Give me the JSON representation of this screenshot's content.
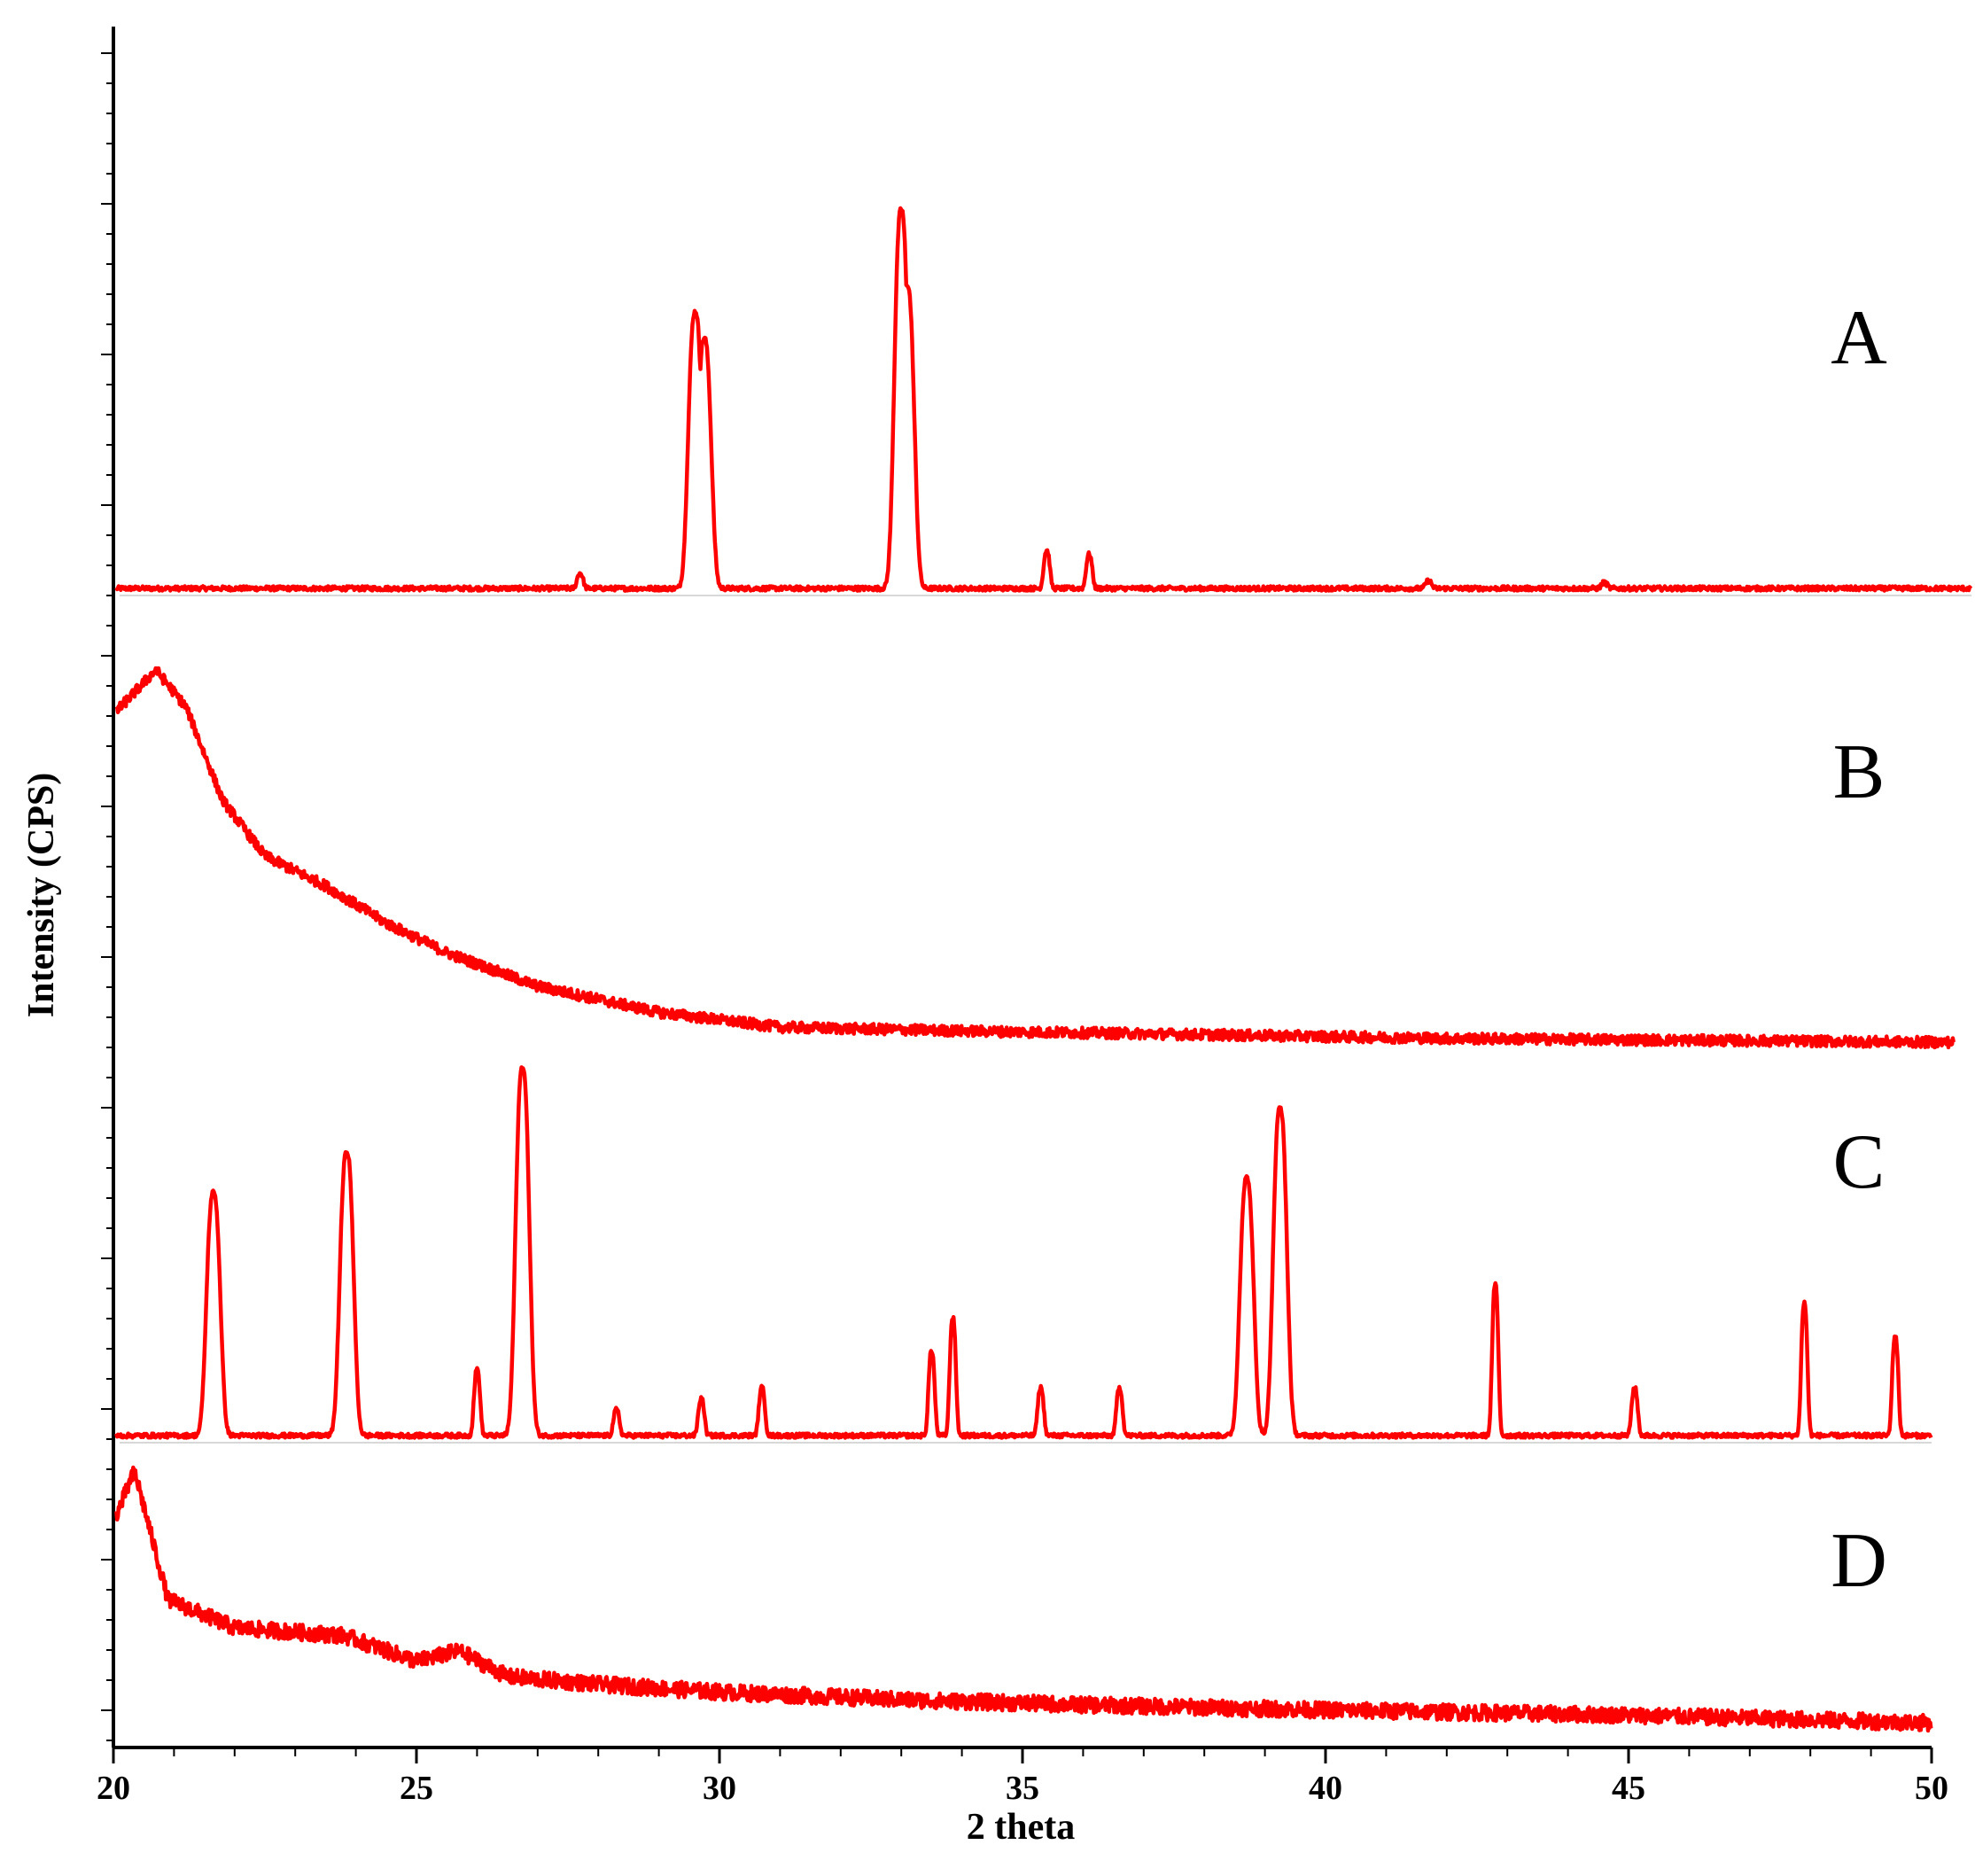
{
  "chart_data": {
    "type": "line",
    "title": "",
    "xlabel": "2 theta",
    "ylabel": "Intensity (CPS)",
    "xlim": [
      20,
      50
    ],
    "x_ticks": [
      "20",
      "25",
      "30",
      "35",
      "40",
      "45",
      "50"
    ],
    "y_ticks_labeled": false,
    "line_color": "#ff0000",
    "legend": "none",
    "grid": false,
    "series": [
      {
        "trace_label": "A",
        "kind": "crystalline",
        "peaks": [
          {
            "two_theta": 27.7,
            "rel_height": 0.04
          },
          {
            "two_theta": 29.6,
            "rel_height": 0.73
          },
          {
            "two_theta": 29.75,
            "rel_height": 0.66
          },
          {
            "two_theta": 33.0,
            "rel_height": 1.0
          },
          {
            "two_theta": 33.1,
            "rel_height": 0.8
          },
          {
            "two_theta": 35.4,
            "rel_height": 0.1
          },
          {
            "two_theta": 36.1,
            "rel_height": 0.09
          },
          {
            "two_theta": 41.7,
            "rel_height": 0.02
          },
          {
            "two_theta": 44.6,
            "rel_height": 0.015
          }
        ]
      },
      {
        "trace_label": "B",
        "kind": "amorphous",
        "points": [
          [
            20.0,
            0.88
          ],
          [
            20.7,
            1.0
          ],
          [
            21.2,
            0.9
          ],
          [
            21.8,
            0.65
          ],
          [
            22.5,
            0.5
          ],
          [
            23.5,
            0.42
          ],
          [
            24.5,
            0.32
          ],
          [
            25.5,
            0.24
          ],
          [
            27.0,
            0.15
          ],
          [
            29.0,
            0.08
          ],
          [
            31.0,
            0.04
          ],
          [
            34.0,
            0.03
          ],
          [
            38.0,
            0.02
          ],
          [
            42.0,
            0.01
          ],
          [
            50.0,
            0.0
          ]
        ]
      },
      {
        "trace_label": "C",
        "kind": "crystalline",
        "peaks": [
          {
            "two_theta": 21.65,
            "rel_height": 0.66
          },
          {
            "two_theta": 23.85,
            "rel_height": 0.77
          },
          {
            "two_theta": 26.0,
            "rel_height": 0.18
          },
          {
            "two_theta": 26.75,
            "rel_height": 1.0
          },
          {
            "two_theta": 28.3,
            "rel_height": 0.07
          },
          {
            "two_theta": 29.7,
            "rel_height": 0.1
          },
          {
            "two_theta": 30.7,
            "rel_height": 0.13
          },
          {
            "two_theta": 33.5,
            "rel_height": 0.23
          },
          {
            "two_theta": 33.85,
            "rel_height": 0.32
          },
          {
            "two_theta": 35.3,
            "rel_height": 0.13
          },
          {
            "two_theta": 36.6,
            "rel_height": 0.13
          },
          {
            "two_theta": 38.7,
            "rel_height": 0.7
          },
          {
            "two_theta": 39.25,
            "rel_height": 0.89
          },
          {
            "two_theta": 42.8,
            "rel_height": 0.41
          },
          {
            "two_theta": 45.1,
            "rel_height": 0.13
          },
          {
            "two_theta": 47.9,
            "rel_height": 0.36
          },
          {
            "two_theta": 49.4,
            "rel_height": 0.27
          }
        ]
      },
      {
        "trace_label": "D",
        "kind": "amorphous",
        "points": [
          [
            20.0,
            0.8
          ],
          [
            20.35,
            1.0
          ],
          [
            20.9,
            0.5
          ],
          [
            22.0,
            0.39
          ],
          [
            23.8,
            0.36
          ],
          [
            25.0,
            0.26
          ],
          [
            25.7,
            0.3
          ],
          [
            26.5,
            0.2
          ],
          [
            28.0,
            0.17
          ],
          [
            30.0,
            0.14
          ],
          [
            33.0,
            0.11
          ],
          [
            36.0,
            0.09
          ],
          [
            40.0,
            0.07
          ],
          [
            45.0,
            0.05
          ],
          [
            50.0,
            0.02
          ]
        ]
      }
    ]
  }
}
